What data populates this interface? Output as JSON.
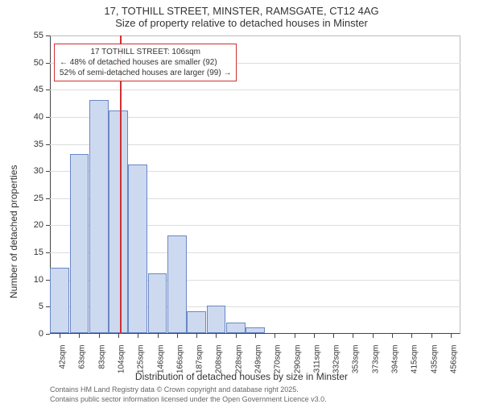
{
  "title_line1": "17, TOTHILL STREET, MINSTER, RAMSGATE, CT12 4AG",
  "title_line2": "Size of property relative to detached houses in Minster",
  "chart": {
    "type": "histogram",
    "ylabel": "Number of detached properties",
    "xlabel": "Distribution of detached houses by size in Minster",
    "ylim": [
      0,
      55
    ],
    "ytick_step": 5,
    "yticks": [
      0,
      5,
      10,
      15,
      20,
      25,
      30,
      35,
      40,
      45,
      50,
      55
    ],
    "grid_color": "#dddddd",
    "bar_fill": "#cdd9ef",
    "bar_border": "#6a87c5",
    "background_color": "#ffffff",
    "axis_color": "#444444",
    "label_fontsize": 12,
    "tick_fontsize": 11,
    "categories": [
      "42sqm",
      "63sqm",
      "83sqm",
      "104sqm",
      "125sqm",
      "146sqm",
      "166sqm",
      "187sqm",
      "208sqm",
      "228sqm",
      "249sqm",
      "270sqm",
      "290sqm",
      "311sqm",
      "332sqm",
      "353sqm",
      "373sqm",
      "394sqm",
      "415sqm",
      "435sqm",
      "456sqm"
    ],
    "values": [
      12,
      33,
      43,
      41,
      31,
      11,
      18,
      4,
      5,
      2,
      1,
      0,
      0,
      0,
      0,
      0,
      0,
      0,
      0,
      0,
      0
    ],
    "refline": {
      "color": "#d03030",
      "position_index": 3.1,
      "width": 2
    },
    "annotation": {
      "border_color": "#d03030",
      "background": "rgba(255,255,255,0.9)",
      "line1": "17 TOTHILL STREET: 106sqm",
      "line2": "← 48% of detached houses are smaller (92)",
      "line3": "52% of semi-detached houses are larger (99) →"
    }
  },
  "footer": {
    "line1": "Contains HM Land Registry data © Crown copyright and database right 2025.",
    "line2": "Contains public sector information licensed under the Open Government Licence v3.0."
  }
}
